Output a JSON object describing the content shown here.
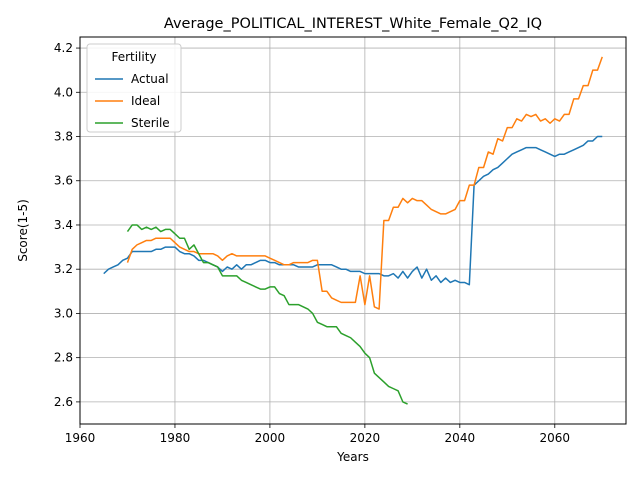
{
  "chart_data": {
    "type": "line",
    "title": "Average_POLITICAL_INTEREST_White_Female_Q2_IQ",
    "xlabel": "Years",
    "ylabel": "Score(1-5)",
    "xlim": [
      1960,
      2075
    ],
    "ylim": [
      2.5,
      4.25
    ],
    "xticks": [
      1960,
      1980,
      2000,
      2020,
      2040,
      2060
    ],
    "yticks": [
      2.6,
      2.8,
      3.0,
      3.2,
      3.4,
      3.6,
      3.8,
      4.0,
      4.2
    ],
    "xtick_labels": [
      "1960",
      "1980",
      "2000",
      "2020",
      "2040",
      "2060"
    ],
    "ytick_labels": [
      "2.6",
      "2.8",
      "3.0",
      "3.2",
      "3.4",
      "3.6",
      "3.8",
      "4.0",
      "4.2"
    ],
    "grid": true,
    "legend": {
      "title": "Fertility",
      "position": "top-left"
    },
    "series": [
      {
        "name": "Actual",
        "color": "#1f77b4",
        "x": [
          1965,
          1966,
          1967,
          1968,
          1969,
          1970,
          1971,
          1972,
          1973,
          1974,
          1975,
          1976,
          1977,
          1978,
          1979,
          1980,
          1981,
          1982,
          1983,
          1984,
          1985,
          1986,
          1987,
          1988,
          1989,
          1990,
          1991,
          1992,
          1993,
          1994,
          1995,
          1996,
          1997,
          1998,
          1999,
          2000,
          2001,
          2002,
          2003,
          2004,
          2005,
          2006,
          2007,
          2008,
          2009,
          2010,
          2011,
          2012,
          2013,
          2014,
          2015,
          2016,
          2017,
          2018,
          2019,
          2020,
          2021,
          2022,
          2023,
          2024,
          2025,
          2026,
          2027,
          2028,
          2029,
          2030,
          2031,
          2032,
          2033,
          2034,
          2035,
          2036,
          2037,
          2038,
          2039,
          2040,
          2041,
          2042,
          2043,
          2044,
          2045,
          2046,
          2047,
          2048,
          2049,
          2050,
          2051,
          2052,
          2053,
          2054,
          2055,
          2056,
          2057,
          2058,
          2059,
          2060,
          2061,
          2062,
          2063,
          2064,
          2065,
          2066,
          2067,
          2068,
          2069,
          2070
        ],
        "y": [
          3.18,
          3.2,
          3.21,
          3.22,
          3.24,
          3.25,
          3.28,
          3.28,
          3.28,
          3.28,
          3.28,
          3.29,
          3.29,
          3.3,
          3.3,
          3.3,
          3.28,
          3.27,
          3.27,
          3.26,
          3.24,
          3.24,
          3.23,
          3.22,
          3.21,
          3.19,
          3.21,
          3.2,
          3.22,
          3.2,
          3.22,
          3.22,
          3.23,
          3.24,
          3.24,
          3.23,
          3.23,
          3.22,
          3.22,
          3.22,
          3.22,
          3.21,
          3.21,
          3.21,
          3.21,
          3.22,
          3.22,
          3.22,
          3.22,
          3.21,
          3.2,
          3.2,
          3.19,
          3.19,
          3.19,
          3.18,
          3.18,
          3.18,
          3.18,
          3.17,
          3.17,
          3.18,
          3.16,
          3.19,
          3.16,
          3.19,
          3.21,
          3.16,
          3.2,
          3.15,
          3.17,
          3.14,
          3.16,
          3.14,
          3.15,
          3.14,
          3.14,
          3.13,
          3.58,
          3.6,
          3.62,
          3.63,
          3.65,
          3.66,
          3.68,
          3.7,
          3.72,
          3.73,
          3.74,
          3.75,
          3.75,
          3.75,
          3.74,
          3.73,
          3.72,
          3.71,
          3.72,
          3.72,
          3.73,
          3.74,
          3.75,
          3.76,
          3.78,
          3.78,
          3.8,
          3.8
        ]
      },
      {
        "name": "Ideal",
        "color": "#ff7f0e",
        "x": [
          1970,
          1971,
          1972,
          1973,
          1974,
          1975,
          1976,
          1977,
          1978,
          1979,
          1980,
          1981,
          1982,
          1983,
          1984,
          1985,
          1986,
          1987,
          1988,
          1989,
          1990,
          1991,
          1992,
          1993,
          1994,
          1995,
          1996,
          1997,
          1998,
          1999,
          2000,
          2001,
          2002,
          2003,
          2004,
          2005,
          2006,
          2007,
          2008,
          2009,
          2010,
          2011,
          2012,
          2013,
          2014,
          2015,
          2016,
          2017,
          2018,
          2019,
          2020,
          2021,
          2022,
          2023,
          2024,
          2025,
          2026,
          2027,
          2028,
          2029,
          2030,
          2031,
          2032,
          2033,
          2034,
          2035,
          2036,
          2037,
          2038,
          2039,
          2040,
          2041,
          2042,
          2043,
          2044,
          2045,
          2046,
          2047,
          2048,
          2049,
          2050,
          2051,
          2052,
          2053,
          2054,
          2055,
          2056,
          2057,
          2058,
          2059,
          2060,
          2061,
          2062,
          2063,
          2064,
          2065,
          2066,
          2067,
          2068,
          2069,
          2070
        ],
        "y": [
          3.23,
          3.29,
          3.31,
          3.32,
          3.33,
          3.33,
          3.34,
          3.34,
          3.34,
          3.34,
          3.32,
          3.3,
          3.29,
          3.28,
          3.28,
          3.27,
          3.27,
          3.27,
          3.27,
          3.26,
          3.24,
          3.26,
          3.27,
          3.26,
          3.26,
          3.26,
          3.26,
          3.26,
          3.26,
          3.26,
          3.25,
          3.24,
          3.23,
          3.22,
          3.22,
          3.23,
          3.23,
          3.23,
          3.23,
          3.24,
          3.24,
          3.1,
          3.1,
          3.07,
          3.06,
          3.05,
          3.05,
          3.05,
          3.05,
          3.17,
          3.04,
          3.17,
          3.03,
          3.02,
          3.42,
          3.42,
          3.48,
          3.48,
          3.52,
          3.5,
          3.52,
          3.51,
          3.51,
          3.49,
          3.47,
          3.46,
          3.45,
          3.45,
          3.46,
          3.47,
          3.51,
          3.51,
          3.58,
          3.58,
          3.66,
          3.66,
          3.73,
          3.72,
          3.79,
          3.78,
          3.84,
          3.84,
          3.88,
          3.87,
          3.9,
          3.89,
          3.9,
          3.87,
          3.88,
          3.86,
          3.88,
          3.87,
          3.9,
          3.9,
          3.97,
          3.97,
          4.03,
          4.03,
          4.1,
          4.1,
          4.16
        ]
      },
      {
        "name": "Sterile",
        "color": "#2ca02c",
        "x": [
          1970,
          1971,
          1972,
          1973,
          1974,
          1975,
          1976,
          1977,
          1978,
          1979,
          1980,
          1981,
          1982,
          1983,
          1984,
          1985,
          1986,
          1987,
          1988,
          1989,
          1990,
          1991,
          1992,
          1993,
          1994,
          1995,
          1996,
          1997,
          1998,
          1999,
          2000,
          2001,
          2002,
          2003,
          2004,
          2005,
          2006,
          2007,
          2008,
          2009,
          2010,
          2011,
          2012,
          2013,
          2014,
          2015,
          2016,
          2017,
          2018,
          2019,
          2020,
          2021,
          2022,
          2023,
          2024,
          2025,
          2026,
          2027,
          2028,
          2029
        ],
        "y": [
          3.37,
          3.4,
          3.4,
          3.38,
          3.39,
          3.38,
          3.39,
          3.37,
          3.38,
          3.38,
          3.36,
          3.34,
          3.34,
          3.29,
          3.31,
          3.27,
          3.23,
          3.23,
          3.22,
          3.21,
          3.17,
          3.17,
          3.17,
          3.17,
          3.15,
          3.14,
          3.13,
          3.12,
          3.11,
          3.11,
          3.12,
          3.12,
          3.09,
          3.08,
          3.04,
          3.04,
          3.04,
          3.03,
          3.02,
          3.0,
          2.96,
          2.95,
          2.94,
          2.94,
          2.94,
          2.91,
          2.9,
          2.89,
          2.87,
          2.85,
          2.82,
          2.8,
          2.73,
          2.71,
          2.69,
          2.67,
          2.66,
          2.65,
          2.6,
          2.59
        ]
      }
    ]
  }
}
